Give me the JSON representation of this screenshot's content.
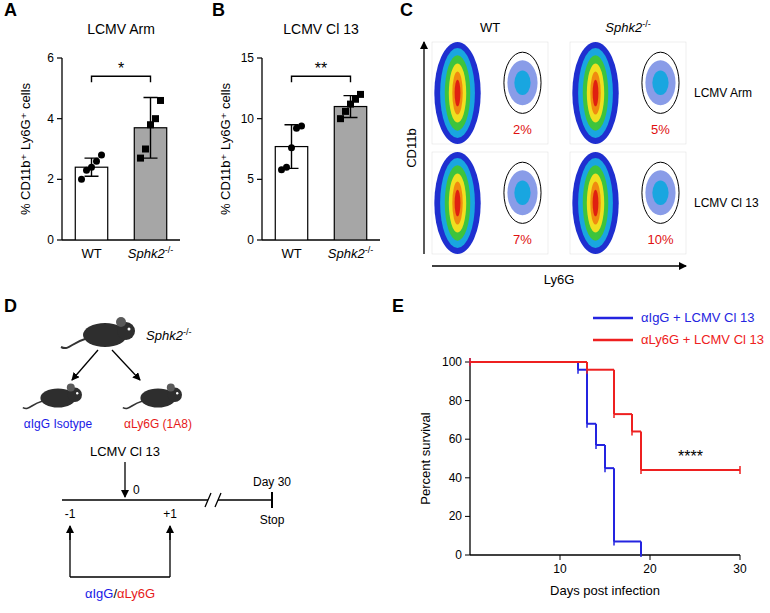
{
  "panel_letters": [
    "A",
    "B",
    "C",
    "D",
    "E"
  ],
  "chart_data": [
    {
      "type": "bar",
      "title": "LCMV Arm",
      "y_label": "% CD11b⁺ Ly6G⁺ cells",
      "categories": [
        "WT",
        "Sphk2-/-"
      ],
      "values": [
        2.4,
        3.7
      ],
      "errors": [
        0.3,
        1.0
      ],
      "points": [
        [
          2.0,
          2.3,
          2.4,
          2.6,
          2.8
        ],
        [
          2.7,
          3.0,
          3.8,
          4.0,
          4.6
        ]
      ],
      "colors": [
        "#ffffff",
        "#a6a6a6"
      ],
      "ylim": [
        0,
        6
      ],
      "yticks": [
        0,
        2,
        4,
        6
      ],
      "annotation": "*"
    },
    {
      "type": "bar",
      "title": "LCMV Cl 13",
      "y_label": "% CD11b⁺ Ly6G⁺ cells",
      "categories": [
        "WT",
        "Sphk2-/-"
      ],
      "values": [
        7.7,
        11.0
      ],
      "errors": [
        1.8,
        0.9
      ],
      "points": [
        [
          5.8,
          6.0,
          7.6,
          9.2,
          9.4
        ],
        [
          10.0,
          10.6,
          11.2,
          11.6,
          12.0
        ]
      ],
      "colors": [
        "#ffffff",
        "#a6a6a6"
      ],
      "ylim": [
        0,
        15
      ],
      "yticks": [
        0,
        5,
        10,
        15
      ],
      "annotation": "**"
    },
    {
      "type": "line",
      "x_label": "Days post infection",
      "y_label": "Percent survival",
      "line_style": "step",
      "marker": "tick",
      "legend": "top-right",
      "series": [
        {
          "name": "αIgG + LCMV Cl 13",
          "color": "#2424e0",
          "x": [
            0,
            12,
            13,
            14,
            15,
            16,
            19
          ],
          "values": [
            100,
            96,
            68,
            57,
            45,
            7,
            0
          ]
        },
        {
          "name": "αLy6G + LCMV Cl 13",
          "color": "#ee2020",
          "x": [
            0,
            13,
            16,
            18,
            19,
            30
          ],
          "values": [
            100,
            96,
            73,
            64,
            44,
            44
          ]
        }
      ],
      "xlim": [
        0,
        30
      ],
      "xticks": [
        10,
        20,
        30
      ],
      "ylim": [
        0,
        100
      ],
      "yticks": [
        0,
        20,
        40,
        60,
        80,
        100
      ],
      "annotation": "****"
    }
  ],
  "flow": {
    "columns": [
      "WT",
      "Sphk2-/-"
    ],
    "rows": [
      "LCMV Arm",
      "LCMV Cl 13"
    ],
    "x_label": "Ly6G",
    "y_label": "CD11b",
    "gate_labels": [
      [
        "2%",
        "5%"
      ],
      [
        "7%",
        "10%"
      ]
    ]
  },
  "schematic": {
    "strain": "Sphk2-/-",
    "groups": [
      {
        "label": "αIgG Isotype",
        "color": "#1a1ae6"
      },
      {
        "label": "αLy6G (1A8)",
        "color": "#e61a1a"
      }
    ],
    "infection": "LCMV Cl 13",
    "timeline": [
      "-1",
      "0",
      "+1"
    ],
    "end_label": "Day 30",
    "stop_label": "Stop",
    "treatment": [
      {
        "text": "αIgG",
        "color": "#1a1ae6"
      },
      {
        "text": "/",
        "color": "#000000"
      },
      {
        "text": "αLy6G",
        "color": "#e61a1a"
      }
    ]
  }
}
